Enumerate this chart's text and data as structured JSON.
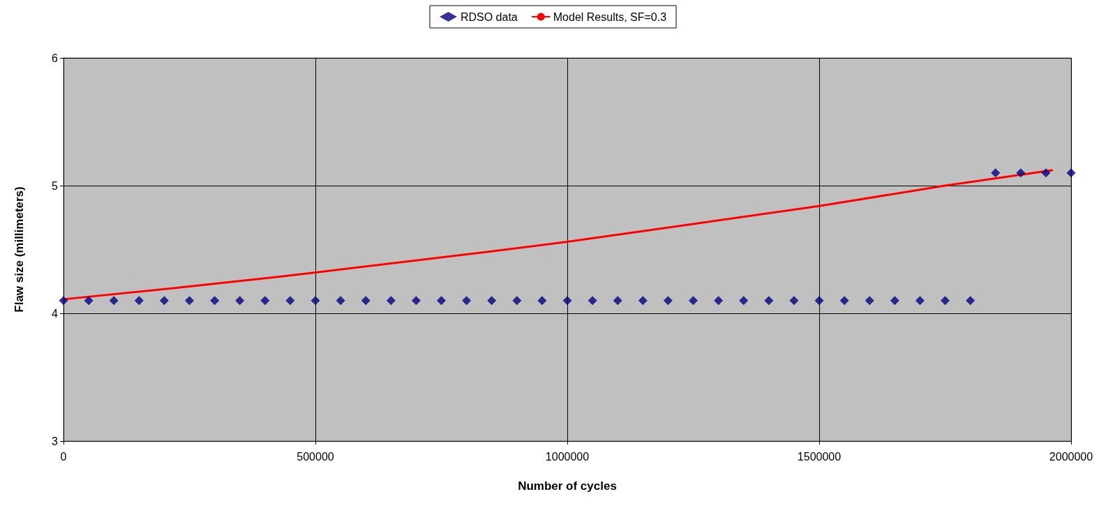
{
  "chart_data": {
    "type": "scatter",
    "xlabel": "Number of cycles",
    "ylabel": "Flaw size (millimeters)",
    "xlim": [
      0,
      2000000
    ],
    "xticks": [
      0,
      500000,
      1000000,
      1500000,
      2000000
    ],
    "ylim": [
      3,
      6
    ],
    "yticks": [
      3,
      4,
      5,
      6
    ],
    "grid": true,
    "legend": "top",
    "series": [
      {
        "name": "RDSO data",
        "marker": "diamond",
        "color": "#000080",
        "x": [
          0,
          50000,
          100000,
          150000,
          200000,
          250000,
          300000,
          350000,
          400000,
          450000,
          500000,
          550000,
          600000,
          650000,
          700000,
          750000,
          800000,
          850000,
          900000,
          950000,
          1000000,
          1050000,
          1100000,
          1150000,
          1200000,
          1250000,
          1300000,
          1350000,
          1400000,
          1450000,
          1500000,
          1550000,
          1600000,
          1650000,
          1700000,
          1750000,
          1800000,
          1850000,
          1900000,
          1950000,
          2000000
        ],
        "values": [
          4.1,
          4.1,
          4.1,
          4.1,
          4.1,
          4.1,
          4.1,
          4.1,
          4.1,
          4.1,
          4.1,
          4.1,
          4.1,
          4.1,
          4.1,
          4.1,
          4.1,
          4.1,
          4.1,
          4.1,
          4.1,
          4.1,
          4.1,
          4.1,
          4.1,
          4.1,
          4.1,
          4.1,
          4.1,
          4.1,
          4.1,
          4.1,
          4.1,
          4.1,
          4.1,
          4.1,
          4.1,
          5.1,
          5.1,
          5.1,
          5.1
        ]
      },
      {
        "name": "Model Results, SF=0.3",
        "type": "line",
        "marker": "none",
        "line_style": "solid",
        "color": "#ff0000",
        "x": [
          0,
          250000,
          435000,
          500000,
          838000,
          1000000,
          1250000,
          1500000,
          1750000,
          1962000
        ],
        "values": [
          4.11,
          4.21,
          4.29,
          4.32,
          4.48,
          4.56,
          4.7,
          4.84,
          5.0,
          5.12
        ]
      }
    ]
  }
}
